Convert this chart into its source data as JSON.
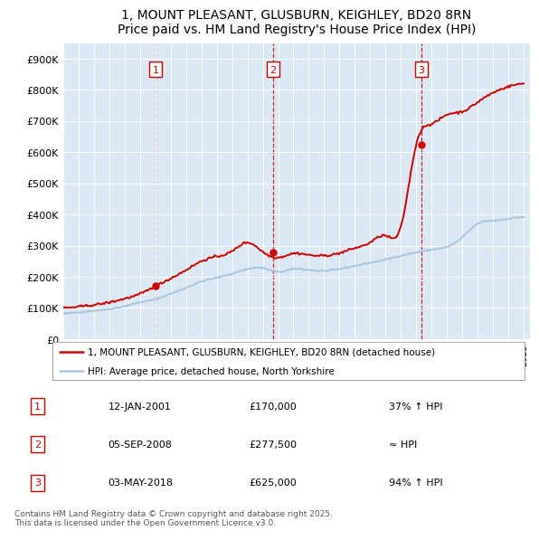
{
  "title": "1, MOUNT PLEASANT, GLUSBURN, KEIGHLEY, BD20 8RN",
  "subtitle": "Price paid vs. HM Land Registry's House Price Index (HPI)",
  "plot_bg_color": "#dce9f5",
  "ylim": [
    0,
    950000
  ],
  "yticks": [
    0,
    100000,
    200000,
    300000,
    400000,
    500000,
    600000,
    700000,
    800000,
    900000
  ],
  "ytick_labels": [
    "£0",
    "£100K",
    "£200K",
    "£300K",
    "£400K",
    "£500K",
    "£600K",
    "£700K",
    "£800K",
    "£900K"
  ],
  "sale_labels": [
    "1",
    "2",
    "3"
  ],
  "sale_prices": [
    170000,
    277500,
    625000
  ],
  "legend_property": "1, MOUNT PLEASANT, GLUSBURN, KEIGHLEY, BD20 8RN (detached house)",
  "legend_hpi": "HPI: Average price, detached house, North Yorkshire",
  "table_data": [
    [
      "1",
      "12-JAN-2001",
      "£170,000",
      "37% ↑ HPI"
    ],
    [
      "2",
      "05-SEP-2008",
      "£277,500",
      "≈ HPI"
    ],
    [
      "3",
      "03-MAY-2018",
      "£625,000",
      "94% ↑ HPI"
    ]
  ],
  "footer": "Contains HM Land Registry data © Crown copyright and database right 2025.\nThis data is licensed under the Open Government Licence v3.0.",
  "hpi_line_color": "#aac4e0",
  "property_line_color": "#cc0000",
  "dashed_line_color": "#cc0000",
  "hpi_key_years": [
    1995,
    1996,
    1997,
    1998,
    1999,
    2000,
    2001,
    2002,
    2003,
    2004,
    2005,
    2006,
    2007,
    2008,
    2009,
    2010,
    2011,
    2012,
    2013,
    2014,
    2015,
    2016,
    2017,
    2018,
    2019,
    2020,
    2021,
    2022,
    2023,
    2024,
    2025
  ],
  "hpi_key_values": [
    82000,
    86000,
    91000,
    97000,
    106000,
    118000,
    128000,
    146000,
    165000,
    185000,
    197000,
    210000,
    225000,
    228000,
    216000,
    225000,
    222000,
    219000,
    225000,
    235000,
    245000,
    255000,
    268000,
    278000,
    287000,
    296000,
    326000,
    370000,
    380000,
    386000,
    392000
  ],
  "prop_key_years": [
    1995,
    1996,
    1997,
    1998,
    1999,
    2000,
    2001,
    2002,
    2003,
    2004,
    2005,
    2006,
    2007,
    2008,
    2009,
    2010,
    2011,
    2012,
    2013,
    2014,
    2015,
    2016,
    2017,
    2018,
    2019,
    2020,
    2021,
    2022,
    2023,
    2024,
    2025
  ],
  "prop_key_values": [
    100000,
    104000,
    110000,
    118000,
    130000,
    145000,
    170000,
    195000,
    222000,
    250000,
    265000,
    282000,
    310000,
    280000,
    262000,
    275000,
    270000,
    268000,
    276000,
    292000,
    310000,
    332000,
    360000,
    625000,
    690000,
    720000,
    730000,
    760000,
    790000,
    810000,
    820000
  ]
}
